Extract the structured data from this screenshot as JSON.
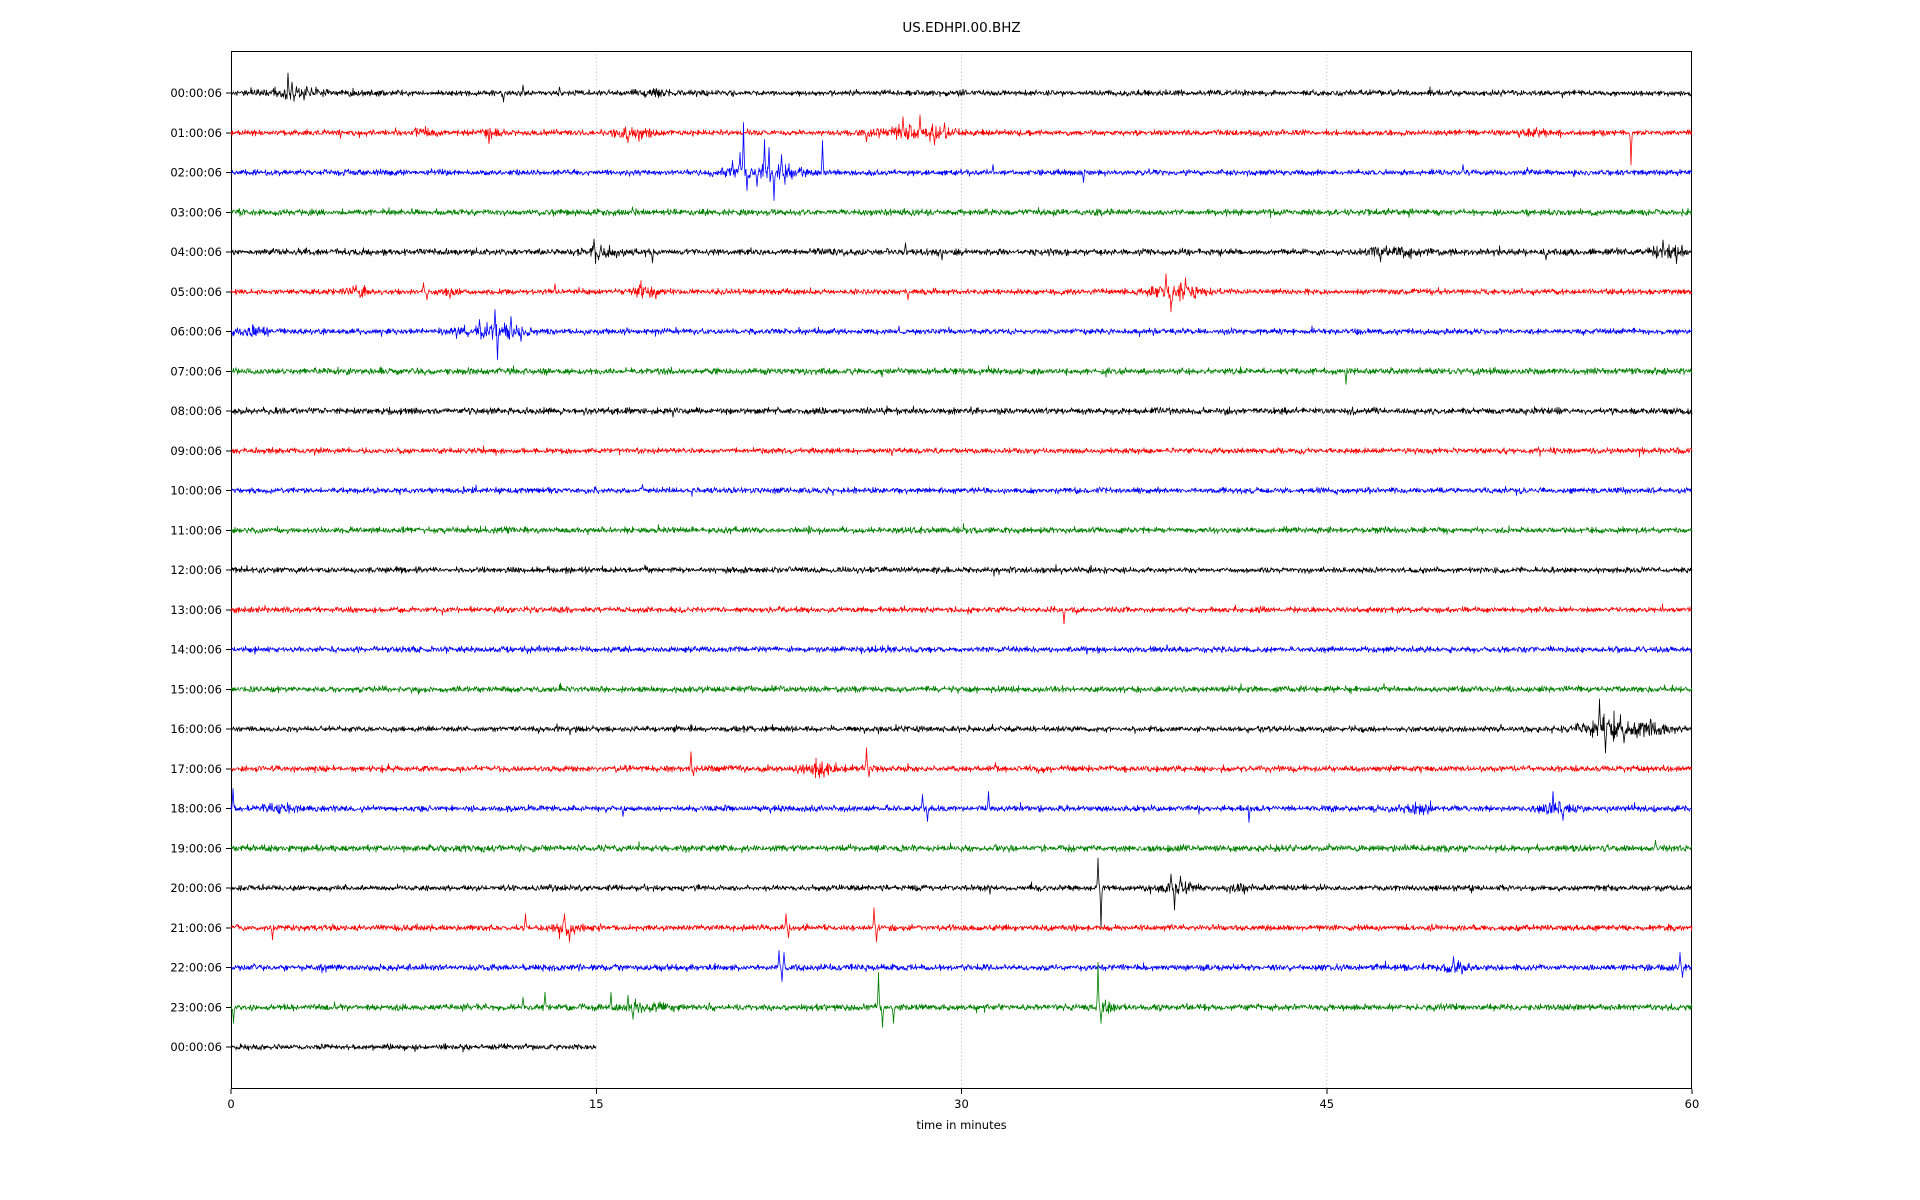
{
  "chart_data": {
    "type": "line",
    "subtype": "helicorder-dayplot",
    "title": "US.EDHPI.00.BHZ",
    "xlabel": "time in minutes",
    "xlim": [
      0,
      60
    ],
    "x_ticks": [
      0,
      15,
      30,
      45,
      60
    ],
    "grid": {
      "vertical_at": [
        15,
        30,
        45
      ],
      "style": "dotted",
      "color": "#b0b0b0"
    },
    "color_cycle": [
      "#000000",
      "#ff0000",
      "#0000ff",
      "#008000"
    ],
    "axis_color": "#000000",
    "background": "#ffffff",
    "traces": [
      {
        "label": "00:00:06",
        "color": "#000000",
        "duration_min": 60,
        "noise": 1.0,
        "spikes": [
          [
            2.35,
            20
          ],
          [
            2.5,
            11
          ],
          [
            11.2,
            -9
          ],
          [
            12.0,
            8
          ],
          [
            13.5,
            6
          ]
        ],
        "bursts": [
          [
            2.7,
            1.4,
            6
          ],
          [
            17.4,
            0.8,
            4
          ]
        ]
      },
      {
        "label": "01:00:06",
        "color": "#ff0000",
        "duration_min": 60,
        "noise": 1.0,
        "spikes": [
          [
            10.6,
            -11
          ],
          [
            16.3,
            -10
          ],
          [
            26.1,
            -9
          ],
          [
            27.6,
            16
          ],
          [
            28.3,
            18
          ],
          [
            28.9,
            -12
          ],
          [
            29.3,
            10
          ],
          [
            57.5,
            -32
          ]
        ],
        "bursts": [
          [
            8.0,
            0.8,
            5
          ],
          [
            10.6,
            0.6,
            5
          ],
          [
            16.5,
            1.2,
            6
          ],
          [
            28.2,
            2.2,
            8
          ],
          [
            53.4,
            0.8,
            4
          ]
        ]
      },
      {
        "label": "02:00:06",
        "color": "#0000ff",
        "duration_min": 60,
        "noise": 1.0,
        "spikes": [
          [
            20.6,
            12
          ],
          [
            20.9,
            20
          ],
          [
            21.05,
            50
          ],
          [
            21.2,
            -18
          ],
          [
            21.6,
            -14
          ],
          [
            21.9,
            33
          ],
          [
            22.1,
            25
          ],
          [
            22.3,
            -28
          ],
          [
            22.6,
            18
          ],
          [
            22.75,
            -12
          ],
          [
            24.3,
            32
          ],
          [
            31.3,
            8
          ],
          [
            35.0,
            -10
          ],
          [
            50.6,
            8
          ]
        ],
        "bursts": [
          [
            21.8,
            2.2,
            9
          ]
        ]
      },
      {
        "label": "03:00:06",
        "color": "#008000",
        "duration_min": 60,
        "noise": 1.1,
        "spikes": [],
        "bursts": []
      },
      {
        "label": "04:00:06",
        "color": "#000000",
        "duration_min": 60,
        "noise": 1.15,
        "spikes": [
          [
            14.9,
            13
          ],
          [
            15.1,
            -8
          ],
          [
            17.3,
            -11
          ],
          [
            27.7,
            9
          ],
          [
            29.2,
            -8
          ],
          [
            47.2,
            -10
          ],
          [
            54.0,
            -8
          ],
          [
            58.8,
            12
          ]
        ],
        "bursts": [
          [
            15.2,
            1.2,
            5
          ],
          [
            47.6,
            1.5,
            5
          ],
          [
            59.0,
            1.0,
            7
          ]
        ]
      },
      {
        "label": "05:00:06",
        "color": "#ff0000",
        "duration_min": 60,
        "noise": 1.0,
        "spikes": [
          [
            7.9,
            9
          ],
          [
            8.05,
            -8
          ],
          [
            13.3,
            8
          ],
          [
            27.8,
            -8
          ],
          [
            38.4,
            18
          ],
          [
            38.6,
            -20
          ],
          [
            39.2,
            14
          ]
        ],
        "bursts": [
          [
            5.2,
            0.6,
            5
          ],
          [
            8.9,
            0.5,
            4
          ],
          [
            17.0,
            0.8,
            7
          ],
          [
            38.8,
            1.5,
            9
          ]
        ]
      },
      {
        "label": "06:00:06",
        "color": "#0000ff",
        "duration_min": 60,
        "noise": 1.0,
        "spikes": [
          [
            10.2,
            12
          ],
          [
            10.85,
            22
          ],
          [
            10.95,
            -28
          ],
          [
            11.5,
            15
          ],
          [
            11.9,
            -10
          ]
        ],
        "bursts": [
          [
            1.0,
            0.8,
            6
          ],
          [
            10.9,
            1.8,
            9
          ]
        ]
      },
      {
        "label": "07:00:06",
        "color": "#008000",
        "duration_min": 60,
        "noise": 1.1,
        "spikes": [
          [
            45.8,
            -13
          ]
        ],
        "bursts": []
      },
      {
        "label": "08:00:06",
        "color": "#000000",
        "duration_min": 60,
        "noise": 1.15,
        "spikes": [],
        "bursts": []
      },
      {
        "label": "09:00:06",
        "color": "#ff0000",
        "duration_min": 60,
        "noise": 1.0,
        "spikes": [],
        "bursts": []
      },
      {
        "label": "10:00:06",
        "color": "#0000ff",
        "duration_min": 60,
        "noise": 1.0,
        "spikes": [
          [
            16.9,
            6
          ]
        ],
        "bursts": []
      },
      {
        "label": "11:00:06",
        "color": "#008000",
        "duration_min": 60,
        "noise": 1.05,
        "spikes": [],
        "bursts": []
      },
      {
        "label": "12:00:06",
        "color": "#000000",
        "duration_min": 60,
        "noise": 1.0,
        "spikes": [],
        "bursts": []
      },
      {
        "label": "13:00:06",
        "color": "#ff0000",
        "duration_min": 60,
        "noise": 1.0,
        "spikes": [
          [
            34.2,
            -14
          ]
        ],
        "bursts": []
      },
      {
        "label": "14:00:06",
        "color": "#0000ff",
        "duration_min": 60,
        "noise": 1.05,
        "spikes": [],
        "bursts": []
      },
      {
        "label": "15:00:06",
        "color": "#008000",
        "duration_min": 60,
        "noise": 1.05,
        "spikes": [],
        "bursts": []
      },
      {
        "label": "16:00:06",
        "color": "#000000",
        "duration_min": 60,
        "noise": 1.0,
        "spikes": [
          [
            56.2,
            30
          ],
          [
            56.45,
            -24
          ],
          [
            56.8,
            18
          ],
          [
            57.2,
            -14
          ],
          [
            58.3,
            10
          ]
        ],
        "bursts": [
          [
            56.7,
            2.0,
            12
          ],
          [
            58.5,
            0.8,
            7
          ]
        ]
      },
      {
        "label": "17:00:06",
        "color": "#ff0000",
        "duration_min": 60,
        "noise": 1.1,
        "spikes": [
          [
            18.9,
            17
          ],
          [
            19.0,
            -7
          ],
          [
            26.1,
            21
          ],
          [
            26.2,
            -8
          ]
        ],
        "bursts": [
          [
            24.2,
            1.1,
            8
          ]
        ]
      },
      {
        "label": "18:00:06",
        "color": "#0000ff",
        "duration_min": 60,
        "noise": 1.05,
        "spikes": [
          [
            0.08,
            20
          ],
          [
            16.1,
            -8
          ],
          [
            28.4,
            14
          ],
          [
            28.6,
            -13
          ],
          [
            31.1,
            17
          ],
          [
            41.8,
            -14
          ],
          [
            54.3,
            17
          ],
          [
            54.7,
            -12
          ]
        ],
        "bursts": [
          [
            2.0,
            1.0,
            4
          ],
          [
            48.6,
            0.9,
            6
          ],
          [
            54.5,
            1.0,
            7
          ]
        ]
      },
      {
        "label": "19:00:06",
        "color": "#008000",
        "duration_min": 60,
        "noise": 1.15,
        "spikes": [
          [
            58.5,
            8
          ]
        ],
        "bursts": []
      },
      {
        "label": "20:00:06",
        "color": "#000000",
        "duration_min": 60,
        "noise": 1.0,
        "spikes": [
          [
            35.6,
            30
          ],
          [
            35.72,
            -40
          ],
          [
            38.6,
            14
          ],
          [
            38.75,
            -22
          ],
          [
            39.0,
            12
          ]
        ],
        "bursts": [
          [
            38.8,
            0.9,
            8
          ],
          [
            41.4,
            0.8,
            5
          ]
        ]
      },
      {
        "label": "21:00:06",
        "color": "#ff0000",
        "duration_min": 60,
        "noise": 1.05,
        "spikes": [
          [
            1.7,
            -12
          ],
          [
            12.1,
            14
          ],
          [
            13.7,
            14
          ],
          [
            13.9,
            -14
          ],
          [
            22.8,
            14
          ],
          [
            22.9,
            -10
          ],
          [
            26.4,
            20
          ],
          [
            26.5,
            -14
          ]
        ],
        "bursts": [
          [
            13.8,
            0.7,
            8
          ]
        ]
      },
      {
        "label": "22:00:06",
        "color": "#0000ff",
        "duration_min": 60,
        "noise": 1.1,
        "spikes": [
          [
            22.5,
            17
          ],
          [
            22.62,
            -14
          ],
          [
            22.72,
            15
          ],
          [
            50.2,
            11
          ],
          [
            59.5,
            15
          ],
          [
            59.6,
            -10
          ]
        ],
        "bursts": [
          [
            50.3,
            0.8,
            6
          ]
        ]
      },
      {
        "label": "23:00:06",
        "color": "#008000",
        "duration_min": 60,
        "noise": 1.1,
        "spikes": [
          [
            0.1,
            -16
          ],
          [
            12.0,
            10
          ],
          [
            12.9,
            15
          ],
          [
            15.6,
            15
          ],
          [
            16.3,
            12
          ],
          [
            16.5,
            -12
          ],
          [
            26.6,
            35
          ],
          [
            26.75,
            -20
          ],
          [
            27.2,
            -16
          ],
          [
            35.6,
            45
          ],
          [
            35.72,
            -16
          ]
        ],
        "bursts": [
          [
            17.0,
            1.2,
            5
          ],
          [
            36.0,
            0.5,
            7
          ]
        ]
      },
      {
        "label": "00:00:06",
        "color": "#000000",
        "duration_min": 15,
        "noise": 1.0,
        "spikes": [],
        "bursts": []
      }
    ]
  }
}
